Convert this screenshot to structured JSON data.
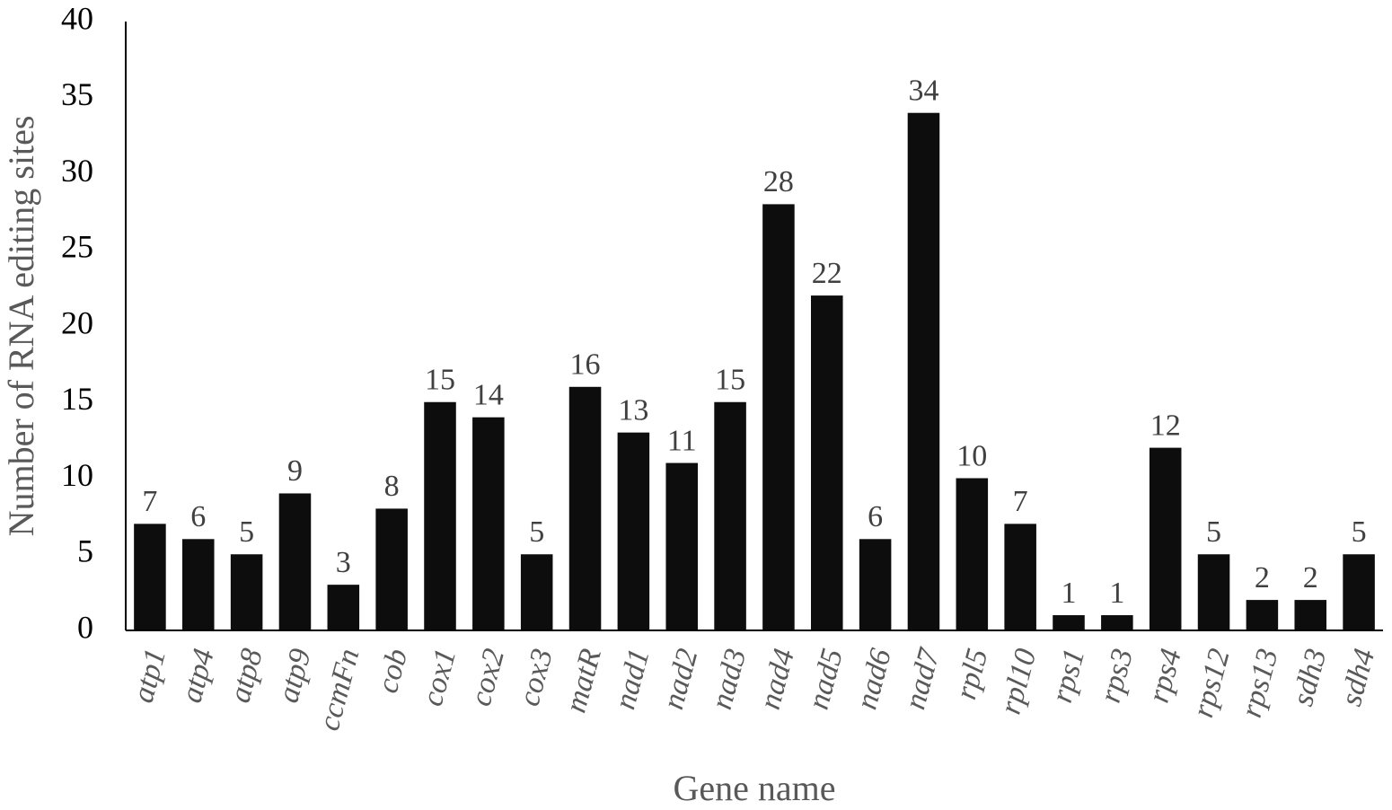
{
  "chart_data": {
    "type": "bar",
    "x_label": "Gene name",
    "y_label": "Number of RNA editing sites",
    "categories": [
      "atp1",
      "atp4",
      "atp8",
      "atp9",
      "ccmFn",
      "cob",
      "cox1",
      "cox2",
      "cox3",
      "matR",
      "nad1",
      "nad2",
      "nad3",
      "nad4",
      "nad5",
      "nad6",
      "nad7",
      "rpl5",
      "rpl10",
      "rps1",
      "rps3",
      "rps4",
      "rps12",
      "rps13",
      "sdh3",
      "sdh4"
    ],
    "values": [
      7,
      6,
      5,
      9,
      3,
      8,
      15,
      14,
      5,
      16,
      13,
      11,
      15,
      28,
      22,
      6,
      34,
      10,
      7,
      1,
      1,
      12,
      5,
      2,
      2,
      5
    ],
    "color": "#0d0d0d",
    "ylim": [
      0,
      40
    ],
    "yticks": [
      0,
      5,
      10,
      15,
      20,
      25,
      30,
      35,
      40
    ],
    "grid": false
  }
}
